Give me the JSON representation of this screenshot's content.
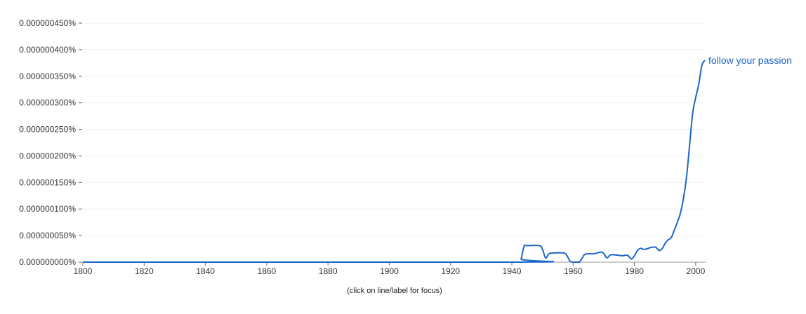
{
  "chart_data": {
    "type": "line",
    "title": "",
    "xlabel": "",
    "ylabel": "",
    "xlim": [
      1800,
      2003
    ],
    "ylim": [
      0,
      4.5e-07
    ],
    "x_ticks": [
      "1800",
      "1820",
      "1840",
      "1860",
      "1880",
      "1900",
      "1920",
      "1940",
      "1960",
      "1980",
      "2000"
    ],
    "x_tick_values": [
      1800,
      1820,
      1840,
      1860,
      1880,
      1900,
      1920,
      1940,
      1960,
      1980,
      2000
    ],
    "y_ticks": [
      "0.000000000%",
      "0.000000050%",
      "0.000000100%",
      "0.000000150%",
      "0.000000200%",
      "0.000000250%",
      "0.000000300%",
      "0.000000350%",
      "0.000000400%",
      "0.000000450%"
    ],
    "y_tick_values": [
      0,
      5e-08,
      1e-07,
      1.5e-07,
      2e-07,
      2.5e-07,
      3e-07,
      3.5e-07,
      4e-07,
      4.5e-07
    ],
    "grid": true,
    "series": [
      {
        "name": "follow your passion",
        "color": "#1a66c5",
        "x": [
          1800,
          1942,
          1943,
          1944,
          1945,
          1949,
          1950,
          1951,
          1952,
          1953,
          1957,
          1958,
          1959,
          1960,
          1961,
          1962,
          1963,
          1964,
          1967,
          1969,
          1970,
          1971,
          1972,
          1973,
          1976,
          1977,
          1978,
          1979,
          1980,
          1981,
          1982,
          1983,
          1984,
          1985,
          1986,
          1987,
          1988,
          1989,
          1990,
          1991,
          1992,
          1993,
          1994,
          1995,
          1996,
          1997,
          1998,
          1999,
          2000,
          2001,
          2002,
          2003
        ],
        "values": [
          0,
          0,
          6e-09,
          3e-08,
          3.1e-08,
          3.1e-08,
          2.4e-08,
          8e-09,
          1.5e-08,
          1.7e-08,
          1.7e-08,
          1.2e-08,
          2e-09,
          0,
          0,
          0,
          8e-09,
          1.5e-08,
          1.6e-08,
          1.9e-08,
          1.6e-08,
          8e-09,
          1.3e-08,
          1.4e-08,
          1.2e-08,
          1.3e-08,
          1.2e-08,
          6e-09,
          1.2e-08,
          2.2e-08,
          2.6e-08,
          2.4e-08,
          2.5e-08,
          2.7e-08,
          2.8e-08,
          2.8e-08,
          2.2e-08,
          2.5e-08,
          3.5e-08,
          4.2e-08,
          4.6e-08,
          6e-08,
          7.5e-08,
          9.2e-08,
          1.2e-07,
          1.6e-07,
          2.2e-07,
          2.8e-07,
          3.1e-07,
          3.35e-07,
          3.7e-07,
          3.8e-07
        ]
      }
    ],
    "annotation": "(click on line/label for focus)"
  }
}
